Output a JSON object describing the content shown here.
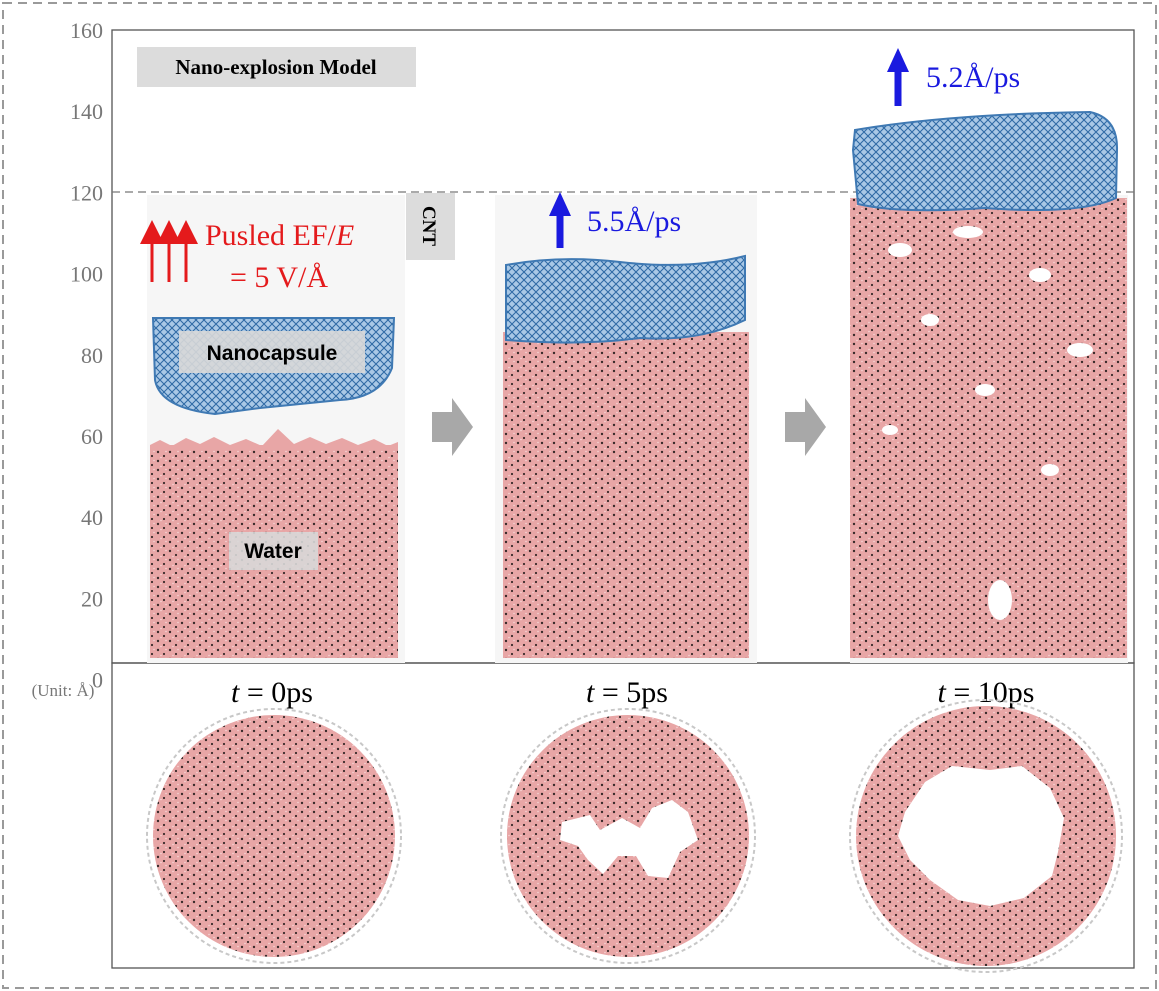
{
  "title": "Nano-explosion Model",
  "axis": {
    "ticks": [
      "160",
      "140",
      "120",
      "100",
      "80",
      "60",
      "40",
      "20",
      "0"
    ],
    "unit_label": "(Unit: Å)"
  },
  "labels": {
    "cnt": "CNT",
    "nanocapsule": "Nanocapsule",
    "water": "Water",
    "field_line1": "Pusled EF/",
    "field_var": "E",
    "field_line2": "= 5 V/Å"
  },
  "velocities": {
    "panel2": "5.5Å/ps",
    "panel3": "5.2Å/ps"
  },
  "time_labels": {
    "var": "t",
    "p1": " = 0ps",
    "p2": " = 5ps",
    "p3": " = 10ps"
  },
  "colors": {
    "water": "#e8a6a6",
    "water_dark": "#3a2a2a",
    "capsule": "#4f86bd",
    "capsule_light": "#a9c8e6",
    "field_arrow": "#e41a1c",
    "velocity": "#1a1adf",
    "step_arrow": "#a8a8a8",
    "label_box": "#dcdcdc",
    "axis_text": "#777777"
  }
}
